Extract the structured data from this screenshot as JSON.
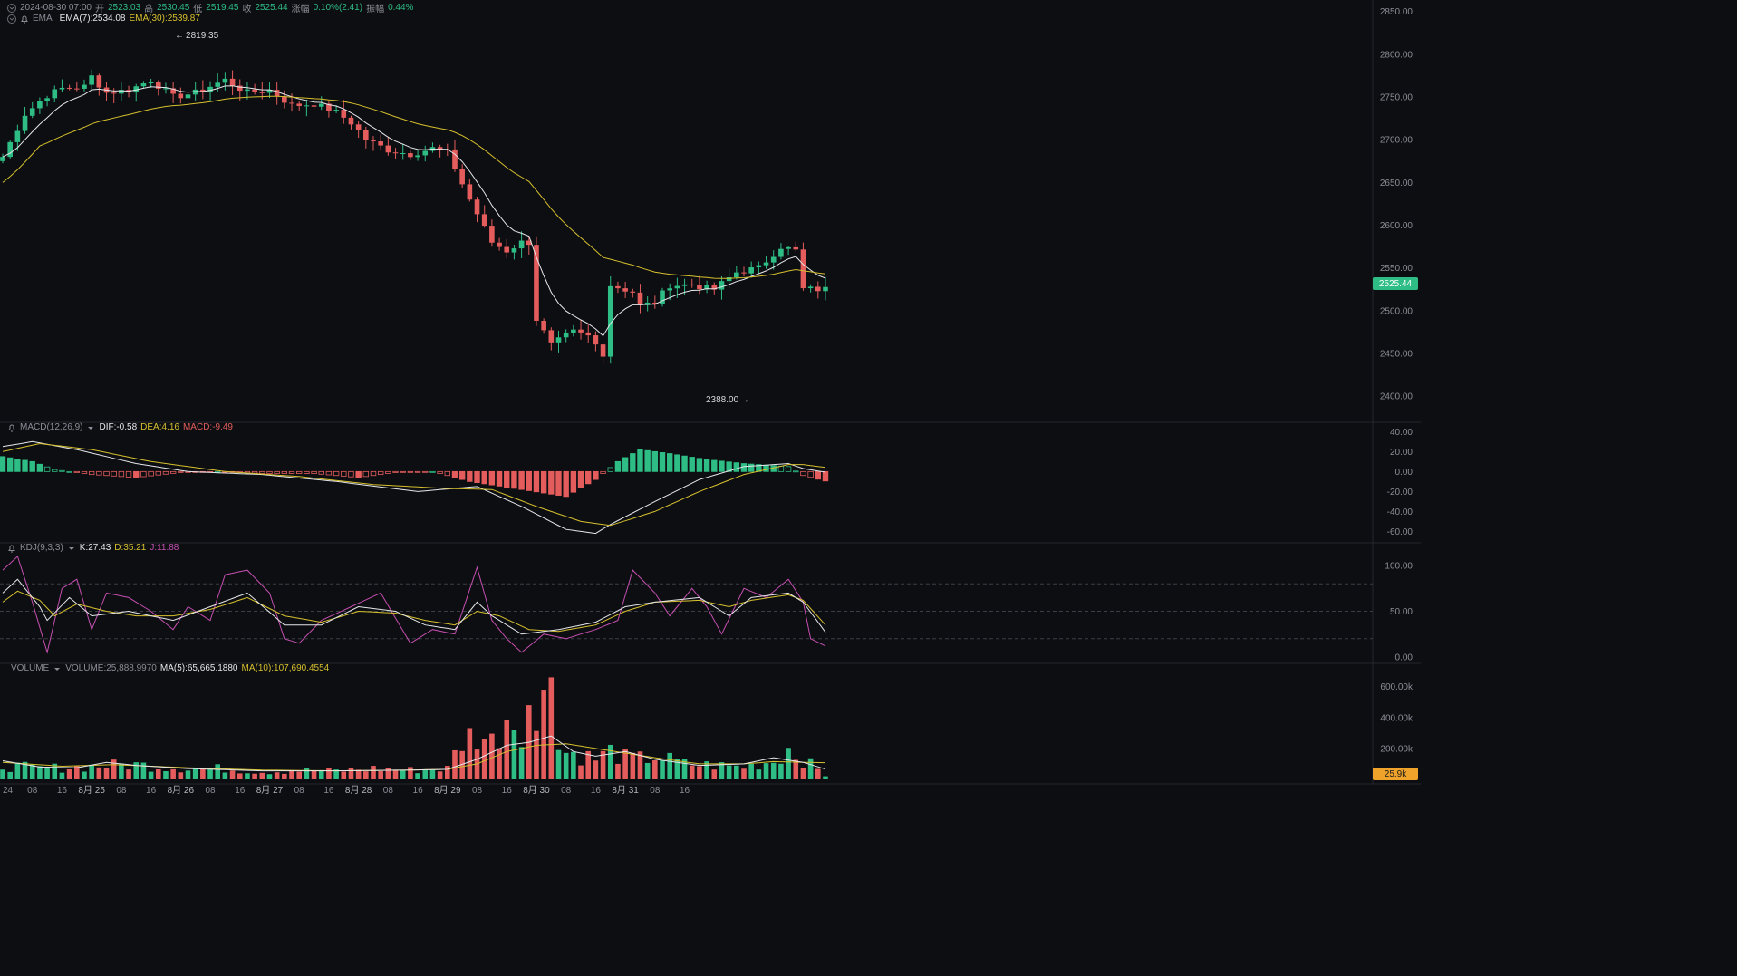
{
  "header": {
    "time": "2024-08-30 07:00",
    "open_label": "开",
    "open": "2523.03",
    "high_label": "高",
    "high": "2530.45",
    "low_label": "低",
    "low": "2519.45",
    "close_label": "收",
    "close": "2525.44",
    "change_label": "涨幅",
    "change": "0.10%(2.41)",
    "amp_label": "振幅",
    "amp": "0.44%"
  },
  "ema": {
    "title": "EMA",
    "ema7": "EMA(7):2534.08",
    "ema30": "EMA(30):2539.87"
  },
  "macd": {
    "title": "MACD(12,26,9)",
    "dif": "DIF:-0.58",
    "dea": "DEA:4.16",
    "macd": "MACD:-9.49"
  },
  "kdj": {
    "title": "KDJ(9,3,3)",
    "k": "K:27.43",
    "d": "D:35.21",
    "j": "J:11.88"
  },
  "vol": {
    "title": "VOLUME",
    "volume": "VOLUME:25,888.9970",
    "ma5": "MA(5):65,665.1880",
    "ma10": "MA(10):107,690.4554"
  },
  "price_tag": "2525.44",
  "volume_tag": "25.9k",
  "annotations": {
    "high": "2819.35",
    "low": "2388.00"
  },
  "colors": {
    "up": "#2ebd85",
    "down": "#e45c5c",
    "ema7": "#e6e7ea",
    "ema30": "#d6c02e",
    "kdj_j": "#c64fb0",
    "vol_tag": "#f0a32a"
  },
  "chart_data": {
    "type": "candlestick",
    "interval_hours": 2,
    "start": "2024-08-24 00:00",
    "price_axis": {
      "ticks": [
        "2400.00",
        "2450.00",
        "2500.00",
        "2550.00",
        "2600.00",
        "2650.00",
        "2700.00",
        "2750.00",
        "2800.00",
        "2850.00"
      ],
      "range": [
        2380,
        2855
      ]
    },
    "macd_axis": {
      "ticks": [
        "-60.00",
        "-40.00",
        "-20.00",
        "0.00",
        "20.00",
        "40.00"
      ],
      "range": [
        -66,
        43
      ]
    },
    "kdj_axis": {
      "ticks": [
        "0.00",
        "50.00",
        "100.00"
      ],
      "range": [
        -5,
        112
      ],
      "dashed_levels": [
        20,
        50,
        80
      ]
    },
    "volume_axis": {
      "ticks": [
        "200.00k",
        "400.00k",
        "600.00k"
      ],
      "range": [
        0,
        680
      ]
    },
    "x_axis_labels": [
      "24",
      "08",
      "16",
      "8月 25",
      "08",
      "16",
      "8月 26",
      "08",
      "16",
      "8月 27",
      "08",
      "16",
      "8月 28",
      "08",
      "16",
      "8月 29",
      "08",
      "16",
      "8月 30",
      "08",
      "16",
      "8月 31",
      "08",
      "16"
    ],
    "x_axis_label_hours": [
      0,
      8,
      16,
      24,
      32,
      40,
      48,
      56,
      64,
      72,
      80,
      88,
      96,
      104,
      112,
      120,
      128,
      136,
      144,
      152,
      160,
      168,
      176,
      184
    ],
    "price_anchors": [
      [
        0,
        2680
      ],
      [
        3,
        2730
      ],
      [
        6,
        2752
      ],
      [
        8,
        2760
      ],
      [
        11,
        2762
      ],
      [
        12,
        2774
      ],
      [
        14,
        2755
      ],
      [
        17,
        2758
      ],
      [
        20,
        2770
      ],
      [
        23,
        2750
      ],
      [
        26,
        2755
      ],
      [
        30,
        2770
      ],
      [
        33,
        2755
      ],
      [
        36,
        2758
      ],
      [
        39,
        2740
      ],
      [
        42,
        2742
      ],
      [
        45,
        2732
      ],
      [
        47,
        2720
      ],
      [
        49,
        2700
      ],
      [
        52,
        2688
      ],
      [
        55,
        2683
      ],
      [
        58,
        2690
      ],
      [
        60,
        2685
      ],
      [
        63,
        2630
      ],
      [
        66,
        2580
      ],
      [
        68,
        2570
      ],
      [
        70,
        2580
      ],
      [
        71,
        2580
      ],
      [
        72,
        2490
      ],
      [
        74,
        2460
      ],
      [
        77,
        2475
      ],
      [
        79,
        2470
      ],
      [
        81,
        2450
      ],
      [
        82,
        2530
      ],
      [
        85,
        2522
      ],
      [
        86,
        2505
      ],
      [
        88,
        2510
      ],
      [
        90,
        2530
      ],
      [
        93,
        2530
      ],
      [
        96,
        2525
      ],
      [
        99,
        2545
      ],
      [
        102,
        2550
      ],
      [
        105,
        2575
      ],
      [
        107,
        2570
      ],
      [
        108,
        2525
      ],
      [
        111,
        2525
      ]
    ],
    "macd_hist_anchors": [
      [
        0,
        15
      ],
      [
        4,
        10
      ],
      [
        7,
        2
      ],
      [
        12,
        -3
      ],
      [
        18,
        -6
      ],
      [
        24,
        -1
      ],
      [
        29,
        0
      ],
      [
        35,
        -2
      ],
      [
        42,
        -2
      ],
      [
        48,
        -6
      ],
      [
        53,
        -1
      ],
      [
        58,
        0
      ],
      [
        63,
        -10
      ],
      [
        70,
        -18
      ],
      [
        76,
        -25
      ],
      [
        80,
        -8
      ],
      [
        83,
        10
      ],
      [
        86,
        22
      ],
      [
        90,
        18
      ],
      [
        95,
        12
      ],
      [
        100,
        8
      ],
      [
        106,
        5
      ],
      [
        108,
        -4
      ],
      [
        111,
        -9.5
      ]
    ],
    "dif_anchors": [
      [
        0,
        25
      ],
      [
        4,
        30
      ],
      [
        10,
        22
      ],
      [
        18,
        8
      ],
      [
        25,
        0
      ],
      [
        35,
        -3
      ],
      [
        45,
        -10
      ],
      [
        56,
        -20
      ],
      [
        64,
        -15
      ],
      [
        70,
        -35
      ],
      [
        76,
        -58
      ],
      [
        80,
        -62
      ],
      [
        82,
        -53
      ],
      [
        88,
        -30
      ],
      [
        94,
        -8
      ],
      [
        100,
        5
      ],
      [
        106,
        8
      ],
      [
        108,
        3
      ],
      [
        111,
        -0.6
      ]
    ],
    "dea_anchors": [
      [
        0,
        20
      ],
      [
        5,
        28
      ],
      [
        12,
        22
      ],
      [
        20,
        10
      ],
      [
        30,
        0
      ],
      [
        40,
        -5
      ],
      [
        50,
        -13
      ],
      [
        60,
        -17
      ],
      [
        66,
        -18
      ],
      [
        72,
        -35
      ],
      [
        78,
        -50
      ],
      [
        82,
        -54
      ],
      [
        88,
        -40
      ],
      [
        94,
        -20
      ],
      [
        100,
        -3
      ],
      [
        106,
        7
      ],
      [
        108,
        7
      ],
      [
        111,
        4.2
      ]
    ],
    "k_anchors": [
      [
        0,
        70
      ],
      [
        2,
        85
      ],
      [
        5,
        55
      ],
      [
        6,
        40
      ],
      [
        9,
        65
      ],
      [
        12,
        45
      ],
      [
        17,
        50
      ],
      [
        23,
        40
      ],
      [
        28,
        55
      ],
      [
        33,
        70
      ],
      [
        38,
        35
      ],
      [
        43,
        35
      ],
      [
        48,
        55
      ],
      [
        53,
        50
      ],
      [
        57,
        35
      ],
      [
        61,
        30
      ],
      [
        64,
        60
      ],
      [
        66,
        45
      ],
      [
        70,
        25
      ],
      [
        75,
        30
      ],
      [
        80,
        38
      ],
      [
        84,
        55
      ],
      [
        88,
        60
      ],
      [
        94,
        65
      ],
      [
        98,
        45
      ],
      [
        101,
        65
      ],
      [
        106,
        70
      ],
      [
        108,
        60
      ],
      [
        111,
        27
      ]
    ],
    "d_anchors": [
      [
        0,
        60
      ],
      [
        2,
        72
      ],
      [
        5,
        62
      ],
      [
        7,
        45
      ],
      [
        10,
        58
      ],
      [
        14,
        50
      ],
      [
        18,
        45
      ],
      [
        23,
        45
      ],
      [
        28,
        52
      ],
      [
        33,
        65
      ],
      [
        38,
        45
      ],
      [
        43,
        38
      ],
      [
        48,
        50
      ],
      [
        53,
        48
      ],
      [
        57,
        40
      ],
      [
        61,
        35
      ],
      [
        64,
        50
      ],
      [
        67,
        45
      ],
      [
        71,
        30
      ],
      [
        75,
        28
      ],
      [
        80,
        35
      ],
      [
        84,
        50
      ],
      [
        88,
        60
      ],
      [
        94,
        62
      ],
      [
        98,
        55
      ],
      [
        101,
        62
      ],
      [
        106,
        68
      ],
      [
        108,
        62
      ],
      [
        111,
        35
      ]
    ],
    "j_anchors": [
      [
        0,
        95
      ],
      [
        2,
        110
      ],
      [
        4,
        60
      ],
      [
        6,
        5
      ],
      [
        8,
        75
      ],
      [
        10,
        85
      ],
      [
        12,
        30
      ],
      [
        14,
        70
      ],
      [
        17,
        65
      ],
      [
        20,
        50
      ],
      [
        23,
        30
      ],
      [
        25,
        55
      ],
      [
        28,
        40
      ],
      [
        30,
        90
      ],
      [
        33,
        95
      ],
      [
        36,
        70
      ],
      [
        38,
        20
      ],
      [
        40,
        15
      ],
      [
        43,
        40
      ],
      [
        47,
        55
      ],
      [
        51,
        70
      ],
      [
        55,
        15
      ],
      [
        58,
        30
      ],
      [
        61,
        25
      ],
      [
        64,
        98
      ],
      [
        66,
        40
      ],
      [
        68,
        20
      ],
      [
        70,
        5
      ],
      [
        73,
        25
      ],
      [
        76,
        20
      ],
      [
        80,
        30
      ],
      [
        83,
        40
      ],
      [
        85,
        95
      ],
      [
        88,
        70
      ],
      [
        90,
        45
      ],
      [
        93,
        75
      ],
      [
        95,
        55
      ],
      [
        97,
        25
      ],
      [
        100,
        75
      ],
      [
        103,
        65
      ],
      [
        106,
        85
      ],
      [
        108,
        60
      ],
      [
        109,
        20
      ],
      [
        111,
        12
      ]
    ],
    "volume_anchors": [
      [
        0,
        90
      ],
      [
        5,
        70
      ],
      [
        10,
        80
      ],
      [
        14,
        90
      ],
      [
        18,
        95
      ],
      [
        22,
        80
      ],
      [
        26,
        70
      ],
      [
        30,
        70
      ],
      [
        35,
        50
      ],
      [
        40,
        60
      ],
      [
        45,
        55
      ],
      [
        50,
        70
      ],
      [
        55,
        60
      ],
      [
        60,
        70
      ],
      [
        62,
        250
      ],
      [
        64,
        300
      ],
      [
        66,
        240
      ],
      [
        68,
        420
      ],
      [
        70,
        380
      ],
      [
        72,
        260
      ],
      [
        74,
        200
      ],
      [
        76,
        180
      ],
      [
        78,
        160
      ],
      [
        80,
        130
      ],
      [
        82,
        180
      ],
      [
        84,
        140
      ],
      [
        86,
        130
      ],
      [
        88,
        150
      ],
      [
        92,
        100
      ],
      [
        96,
        90
      ],
      [
        100,
        80
      ],
      [
        104,
        120
      ],
      [
        106,
        200
      ],
      [
        108,
        130
      ],
      [
        111,
        26
      ]
    ],
    "volume_ma5_anchors": [
      [
        0,
        120
      ],
      [
        5,
        80
      ],
      [
        10,
        75
      ],
      [
        14,
        110
      ],
      [
        18,
        90
      ],
      [
        25,
        70
      ],
      [
        35,
        55
      ],
      [
        45,
        55
      ],
      [
        55,
        60
      ],
      [
        60,
        65
      ],
      [
        64,
        130
      ],
      [
        68,
        220
      ],
      [
        71,
        240
      ],
      [
        74,
        280
      ],
      [
        77,
        180
      ],
      [
        80,
        150
      ],
      [
        84,
        180
      ],
      [
        88,
        130
      ],
      [
        94,
        90
      ],
      [
        100,
        100
      ],
      [
        104,
        140
      ],
      [
        108,
        110
      ],
      [
        111,
        66
      ]
    ],
    "volume_ma10_anchors": [
      [
        0,
        110
      ],
      [
        8,
        85
      ],
      [
        15,
        95
      ],
      [
        25,
        75
      ],
      [
        35,
        60
      ],
      [
        45,
        55
      ],
      [
        55,
        60
      ],
      [
        60,
        65
      ],
      [
        64,
        100
      ],
      [
        68,
        180
      ],
      [
        72,
        220
      ],
      [
        76,
        230
      ],
      [
        80,
        200
      ],
      [
        84,
        170
      ],
      [
        88,
        140
      ],
      [
        94,
        100
      ],
      [
        100,
        100
      ],
      [
        104,
        115
      ],
      [
        108,
        110
      ],
      [
        111,
        108
      ]
    ]
  }
}
